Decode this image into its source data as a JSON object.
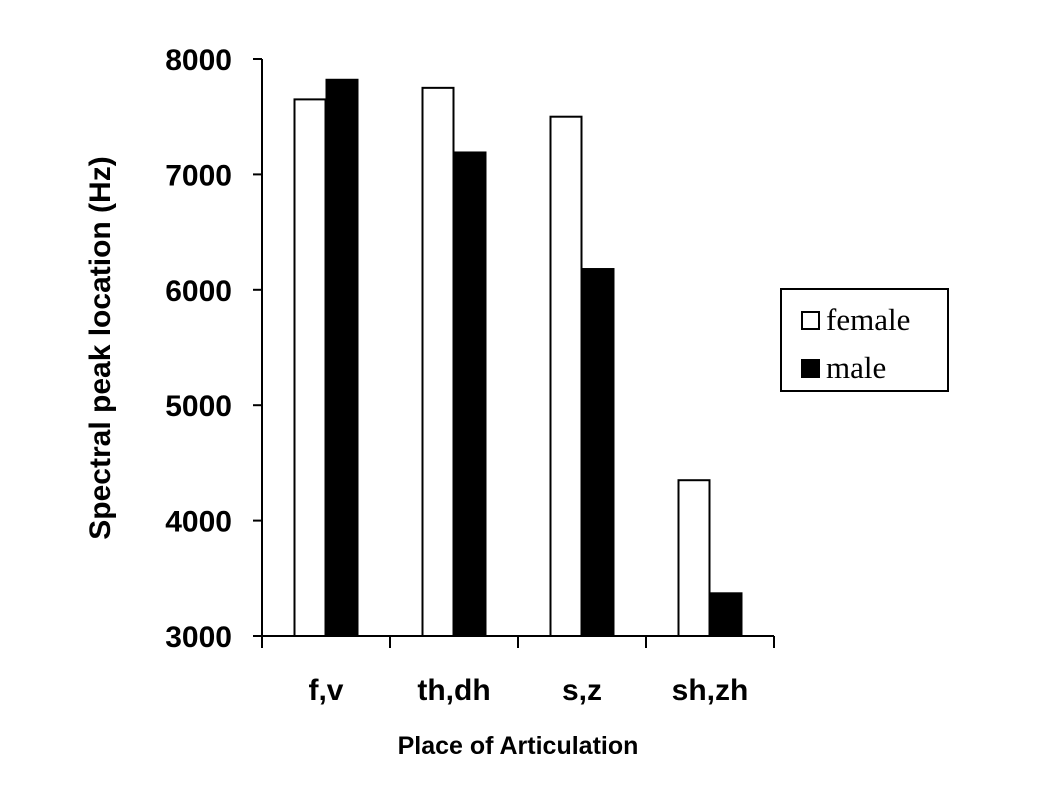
{
  "chart_data": {
    "type": "bar",
    "title": "",
    "xlabel": "Place of Articulation",
    "ylabel": "Spectral peak location (Hz)",
    "categories": [
      "f,v",
      "th,dh",
      "s,z",
      "sh,zh"
    ],
    "series": [
      {
        "name": "female",
        "values": [
          7650,
          7750,
          7500,
          4350
        ],
        "color": "#ffffff",
        "stroke": "#000000"
      },
      {
        "name": "male",
        "values": [
          7820,
          7190,
          6180,
          3370
        ],
        "color": "#000000",
        "stroke": "#000000"
      }
    ],
    "ylim": [
      3000,
      8000
    ],
    "yticks": [
      3000,
      4000,
      5000,
      6000,
      7000,
      8000
    ],
    "ytick_labels": [
      "3000",
      "4000",
      "5000",
      "6000",
      "7000",
      "8000"
    ],
    "grid": false,
    "legend_position": "right"
  }
}
